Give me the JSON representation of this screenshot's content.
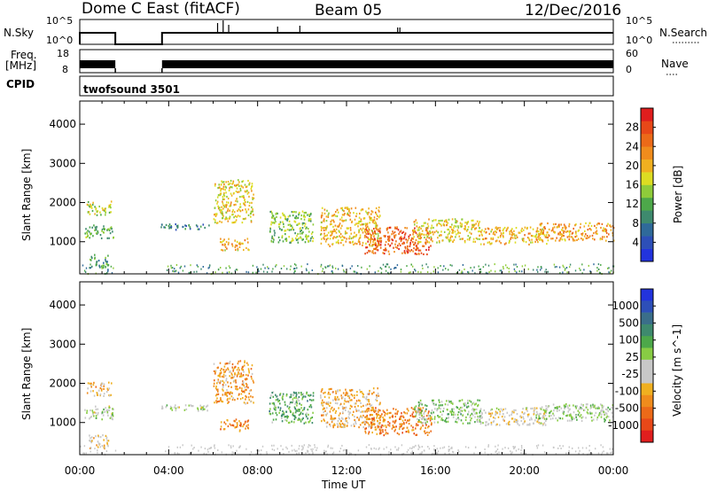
{
  "header": {
    "title": "Dome C East (fitACF)",
    "beam": "Beam 05",
    "date": "12/Dec/2016"
  },
  "noise_panel": {
    "left_label": "N.Sky",
    "right_label": "N.Search",
    "left_ticks": [
      "10^5",
      "10^0"
    ],
    "right_ticks": [
      "10^5",
      "10^0"
    ]
  },
  "freq_panel": {
    "left_label_line1": "Freq.",
    "left_label_line2": "[MHz]",
    "right_label": "Nave",
    "left_ticks": [
      "18",
      "8"
    ],
    "right_ticks": [
      "60",
      "0"
    ]
  },
  "cpid_panel": {
    "label": "CPID",
    "value": "twofsound 3501"
  },
  "chart_data": [
    {
      "type": "heatmap",
      "title": "",
      "xlabel": "Time UT",
      "ylabel": "Slant Range [km]",
      "x_ticks": [
        "00:00",
        "04:00",
        "08:00",
        "12:00",
        "16:00",
        "20:00",
        "00:00"
      ],
      "xlim_hours": [
        0,
        24
      ],
      "y_ticks": [
        "1000",
        "2000",
        "3000",
        "4000"
      ],
      "ylim": [
        180,
        4590
      ],
      "grid": false,
      "colorbar": {
        "label": "Power [dB]",
        "ticks": [
          "4",
          "8",
          "12",
          "16",
          "20",
          "24",
          "28"
        ],
        "range": [
          0,
          32
        ],
        "colors": [
          "#2233dd",
          "#2d4fb8",
          "#2f6a9a",
          "#3e8a6e",
          "#4da84a",
          "#8fcc3a",
          "#dddd22",
          "#f0b020",
          "#f08c1c",
          "#ec6a18",
          "#e84818",
          "#e01e1e"
        ]
      },
      "series": [
        {
          "x": [
            0.2,
            1.5
          ],
          "y": [
            1100,
            1450
          ],
          "value": 12
        },
        {
          "x": [
            0.3,
            1.4
          ],
          "y": [
            1700,
            2050
          ],
          "value": 16
        },
        {
          "x": [
            0.4,
            1.3
          ],
          "y": [
            350,
            700
          ],
          "value": 10
        },
        {
          "x": [
            3.6,
            5.8
          ],
          "y": [
            1320,
            1470
          ],
          "value": 8
        },
        {
          "x": [
            6.0,
            7.8
          ],
          "y": [
            1500,
            2600
          ],
          "value": 18
        },
        {
          "x": [
            6.3,
            7.6
          ],
          "y": [
            800,
            1100
          ],
          "value": 20
        },
        {
          "x": [
            8.5,
            10.5
          ],
          "y": [
            1000,
            1800
          ],
          "value": 14
        },
        {
          "x": [
            10.8,
            13.5
          ],
          "y": [
            900,
            1900
          ],
          "value": 20
        },
        {
          "x": [
            12.8,
            15.8
          ],
          "y": [
            700,
            1400
          ],
          "value": 26
        },
        {
          "x": [
            15.0,
            18.0
          ],
          "y": [
            1000,
            1600
          ],
          "value": 18
        },
        {
          "x": [
            18.0,
            21.0
          ],
          "y": [
            950,
            1400
          ],
          "value": 20
        },
        {
          "x": [
            20.5,
            24.0
          ],
          "y": [
            1050,
            1500
          ],
          "value": 22
        }
      ]
    },
    {
      "type": "heatmap",
      "title": "",
      "xlabel": "Time UT",
      "ylabel": "Slant Range [km]",
      "x_ticks": [
        "00:00",
        "04:00",
        "08:00",
        "12:00",
        "16:00",
        "20:00",
        "00:00"
      ],
      "xlim_hours": [
        0,
        24
      ],
      "y_ticks": [
        "1000",
        "2000",
        "3000",
        "4000"
      ],
      "ylim": [
        180,
        4590
      ],
      "grid": false,
      "colorbar": {
        "label": "Velocity [m s^-1]",
        "ticks": [
          "1000",
          "500",
          "100",
          "25",
          "-25",
          "-100",
          "-500",
          "-1000"
        ],
        "range": [
          -1000,
          1000
        ],
        "colors": [
          "#2233dd",
          "#2d4fb8",
          "#3a6e8a",
          "#3e8a6e",
          "#4da84a",
          "#88cc44",
          "#c8c8c8",
          "#c8c8c8",
          "#f0b020",
          "#f08c1c",
          "#ec6a18",
          "#e84818",
          "#e01e1e"
        ]
      },
      "series": [
        {
          "x": [
            0.2,
            1.5
          ],
          "y": [
            1100,
            1450
          ],
          "value": 0
        },
        {
          "x": [
            0.3,
            1.4
          ],
          "y": [
            1700,
            2050
          ],
          "value": -300
        },
        {
          "x": [
            0.4,
            1.3
          ],
          "y": [
            350,
            700
          ],
          "value": -200
        },
        {
          "x": [
            3.6,
            5.8
          ],
          "y": [
            1320,
            1470
          ],
          "value": 0
        },
        {
          "x": [
            6.0,
            7.8
          ],
          "y": [
            1500,
            2600
          ],
          "value": -400
        },
        {
          "x": [
            6.3,
            7.6
          ],
          "y": [
            800,
            1100
          ],
          "value": -500
        },
        {
          "x": [
            8.5,
            10.5
          ],
          "y": [
            1000,
            1800
          ],
          "value": 300
        },
        {
          "x": [
            10.8,
            13.5
          ],
          "y": [
            900,
            1900
          ],
          "value": -300
        },
        {
          "x": [
            12.8,
            15.8
          ],
          "y": [
            700,
            1400
          ],
          "value": -500
        },
        {
          "x": [
            15.0,
            18.0
          ],
          "y": [
            1000,
            1600
          ],
          "value": 150
        },
        {
          "x": [
            18.0,
            21.0
          ],
          "y": [
            950,
            1400
          ],
          "value": -150
        },
        {
          "x": [
            20.5,
            24.0
          ],
          "y": [
            1050,
            1500
          ],
          "value": 100
        }
      ]
    }
  ]
}
